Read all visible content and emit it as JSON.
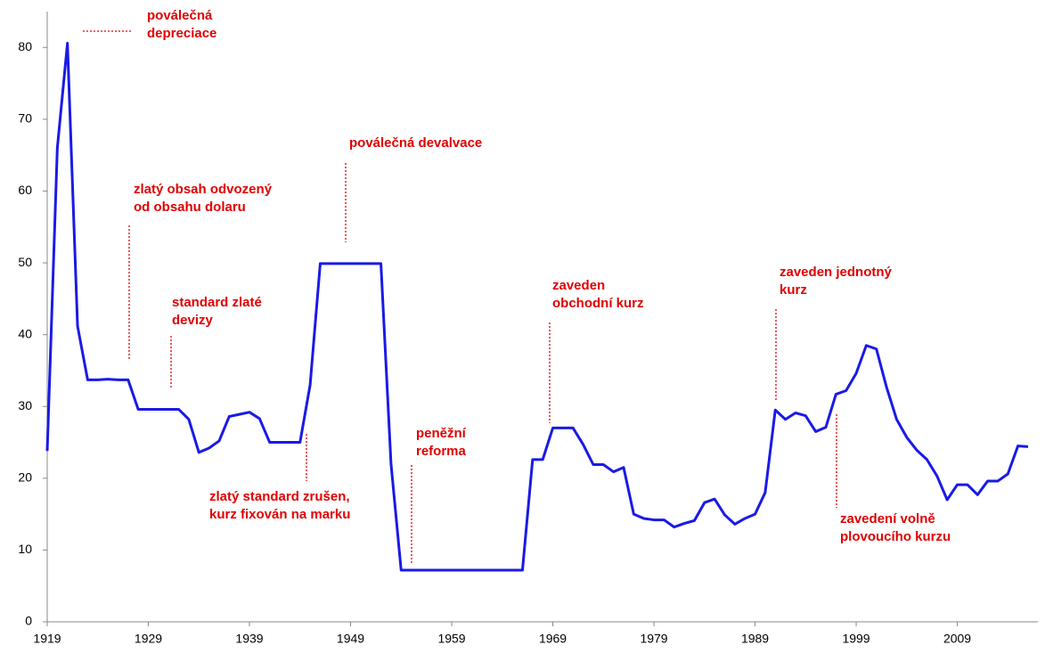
{
  "chart_data": {
    "type": "line",
    "x": [
      1919,
      1920,
      1921,
      1922,
      1923,
      1924,
      1925,
      1926,
      1927,
      1928,
      1929,
      1930,
      1931,
      1932,
      1933,
      1934,
      1935,
      1936,
      1937,
      1938,
      1939,
      1940,
      1941,
      1942,
      1943,
      1944,
      1945,
      1946,
      1947,
      1948,
      1949,
      1950,
      1951,
      1952,
      1953,
      1954,
      1955,
      1956,
      1957,
      1958,
      1959,
      1960,
      1961,
      1962,
      1963,
      1964,
      1965,
      1966,
      1967,
      1968,
      1969,
      1970,
      1971,
      1972,
      1973,
      1974,
      1975,
      1976,
      1977,
      1978,
      1979,
      1980,
      1981,
      1982,
      1983,
      1984,
      1985,
      1986,
      1987,
      1988,
      1989,
      1990,
      1991,
      1992,
      1993,
      1994,
      1995,
      1996,
      1997,
      1998,
      1999,
      2000,
      2001,
      2002,
      2003,
      2004,
      2005,
      2006,
      2007,
      2008,
      2009,
      2010,
      2011,
      2012,
      2013,
      2014,
      2015,
      2016
    ],
    "series": [
      {
        "color": "#1a1ae6",
        "values": [
          23.8,
          66,
          80.6,
          41.2,
          33.7,
          33.7,
          33.8,
          33.7,
          33.7,
          29.6,
          29.6,
          29.6,
          29.6,
          29.6,
          28.2,
          23.6,
          24.2,
          25.2,
          28.6,
          28.9,
          29.2,
          28.3,
          25,
          25,
          25,
          25,
          33,
          49.9,
          49.9,
          49.9,
          49.9,
          49.9,
          49.9,
          49.9,
          22,
          7.2,
          7.2,
          7.2,
          7.2,
          7.2,
          7.2,
          7.2,
          7.2,
          7.2,
          7.2,
          7.2,
          7.2,
          7.2,
          22.6,
          22.6,
          27,
          27,
          27,
          24.7,
          21.9,
          21.9,
          20.9,
          21.5,
          15,
          14.4,
          14.2,
          14.2,
          13.2,
          13.7,
          14.1,
          16.6,
          17.1,
          14.9,
          13.6,
          14.4,
          15,
          18,
          29.5,
          28.2,
          29.1,
          28.7,
          26.5,
          27.1,
          31.7,
          32.2,
          34.6,
          38.5,
          38,
          32.7,
          28.2,
          25.7,
          23.9,
          22.6,
          20.3,
          17,
          19.1,
          19.1,
          17.7,
          19.6,
          19.6,
          20.6,
          24.5,
          24.4
        ]
      }
    ],
    "xlim": [
      1919,
      2016
    ],
    "xticks": [
      1919,
      1929,
      1939,
      1949,
      1959,
      1969,
      1979,
      1989,
      1999,
      2009
    ],
    "ylim": [
      0,
      85
    ],
    "yticks": [
      0,
      10,
      20,
      30,
      40,
      50,
      60,
      70,
      80
    ],
    "annotation_color": "#e00000",
    "annotations": [
      {
        "lines": [
          "poválečná",
          "depreciace"
        ]
      },
      {
        "lines": [
          "zlatý obsah odvozený",
          "od obsahu dolaru"
        ]
      },
      {
        "lines": [
          "standard zlaté",
          "devizy"
        ]
      },
      {
        "lines": [
          "poválečná devalvace"
        ]
      },
      {
        "lines": [
          "zlatý standard zrušen,",
          "kurz fixován na marku"
        ]
      },
      {
        "lines": [
          "peněžní",
          "reforma"
        ]
      },
      {
        "lines": [
          "zaveden",
          "obchodní kurz"
        ]
      },
      {
        "lines": [
          "zaveden jednotný",
          "kurz"
        ]
      },
      {
        "lines": [
          "zavedení volně",
          "plovoucího kurzu"
        ]
      }
    ]
  }
}
